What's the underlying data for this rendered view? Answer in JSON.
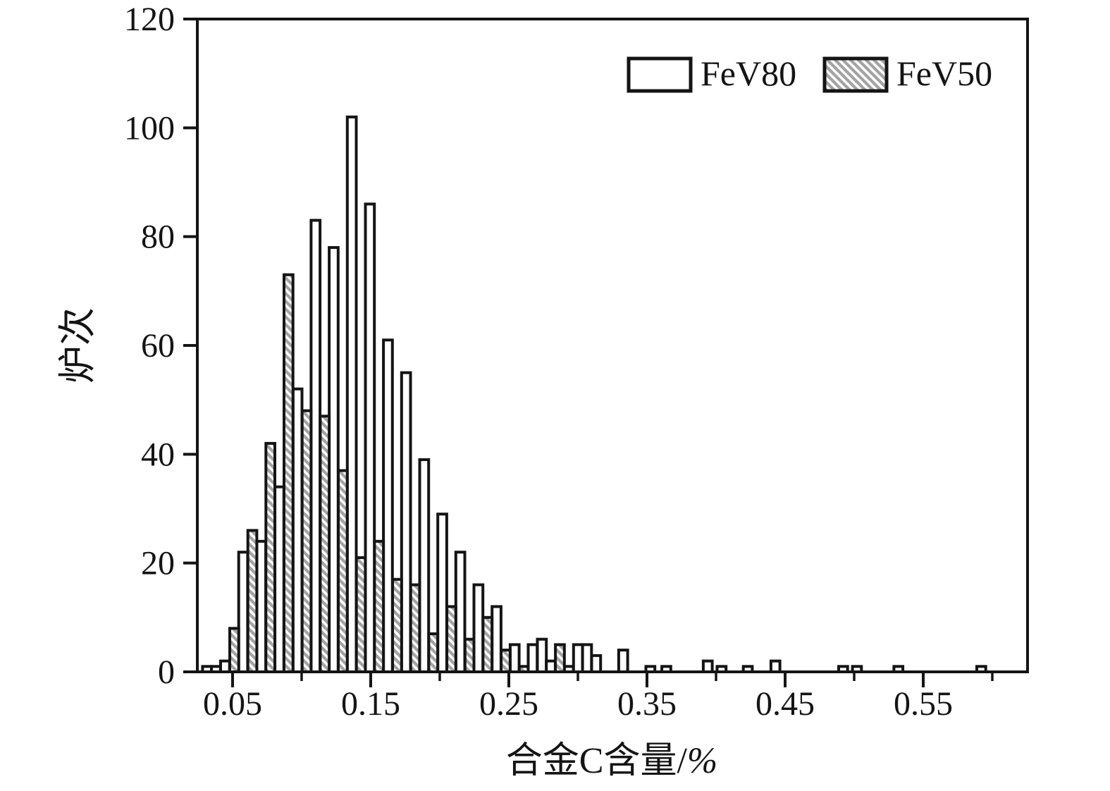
{
  "figure": {
    "background": "#ffffff",
    "frame_color": "#141414",
    "bar_edge_color": "#141414",
    "hatch_line_color": "#a3a3a3",
    "white_fill": "#ffffff"
  },
  "legend": {
    "items": [
      {
        "label": "FeV80",
        "swatch": "open-outline"
      },
      {
        "label": "FeV50",
        "swatch": "hatched-diagonal"
      }
    ]
  },
  "chart_data": {
    "type": "bar",
    "subtype": "overlaid-histograms",
    "title": "",
    "xlabel": "合金C含量/%",
    "xlabel_main": "合金C含量/",
    "xlabel_unit": "%",
    "ylabel": "炉次",
    "xlim": [
      0.025,
      0.625
    ],
    "ylim": [
      0,
      120
    ],
    "grid": false,
    "legend_position": "top-right-inside",
    "bin_width": 0.0065,
    "y_ticks": [
      0,
      20,
      40,
      60,
      80,
      100,
      120
    ],
    "y_tick_labels": [
      "0",
      "20",
      "40",
      "60",
      "80",
      "100",
      "120"
    ],
    "x_major_ticks": [
      0.05,
      0.15,
      0.25,
      0.35,
      0.45,
      0.55
    ],
    "x_major_tick_labels": [
      "0.05",
      "0.15",
      "0.25",
      "0.35",
      "0.45",
      "0.55"
    ],
    "x_minor_ticks": [
      0.1,
      0.2,
      0.3,
      0.4,
      0.5,
      0.6
    ],
    "series": [
      {
        "name": "FeV80",
        "style": "open",
        "bars": [
          [
            0.0315,
            1
          ],
          [
            0.038,
            1
          ],
          [
            0.0446,
            2
          ],
          [
            0.0577,
            22
          ],
          [
            0.0708,
            24
          ],
          [
            0.0839,
            34
          ],
          [
            0.097,
            52
          ],
          [
            0.1101,
            83
          ],
          [
            0.1232,
            78
          ],
          [
            0.1363,
            102
          ],
          [
            0.1494,
            86
          ],
          [
            0.1625,
            61
          ],
          [
            0.1756,
            55
          ],
          [
            0.1887,
            39
          ],
          [
            0.2018,
            29
          ],
          [
            0.2149,
            22
          ],
          [
            0.228,
            16
          ],
          [
            0.2411,
            12
          ],
          [
            0.2542,
            5
          ],
          [
            0.2673,
            5
          ],
          [
            0.2739,
            6
          ],
          [
            0.2804,
            2
          ],
          [
            0.2935,
            1
          ],
          [
            0.3001,
            5
          ],
          [
            0.3066,
            5
          ],
          [
            0.3132,
            3
          ],
          [
            0.3328,
            4
          ],
          [
            0.3525,
            1
          ],
          [
            0.364,
            1
          ],
          [
            0.394,
            2
          ],
          [
            0.404,
            1
          ],
          [
            0.423,
            1
          ],
          [
            0.443,
            2
          ],
          [
            0.492,
            1
          ],
          [
            0.502,
            1
          ],
          [
            0.532,
            1
          ],
          [
            0.592,
            1
          ]
        ]
      },
      {
        "name": "FeV50",
        "style": "hatched",
        "bars": [
          [
            0.0512,
            8
          ],
          [
            0.0643,
            26
          ],
          [
            0.0774,
            42
          ],
          [
            0.0905,
            73
          ],
          [
            0.1036,
            48
          ],
          [
            0.1167,
            47
          ],
          [
            0.1298,
            37
          ],
          [
            0.1429,
            21
          ],
          [
            0.156,
            24
          ],
          [
            0.1691,
            17
          ],
          [
            0.1822,
            16
          ],
          [
            0.1953,
            7
          ],
          [
            0.2084,
            12
          ],
          [
            0.2215,
            6
          ],
          [
            0.2346,
            10
          ],
          [
            0.2477,
            4
          ],
          [
            0.2608,
            1
          ],
          [
            0.287,
            5
          ]
        ]
      }
    ]
  }
}
